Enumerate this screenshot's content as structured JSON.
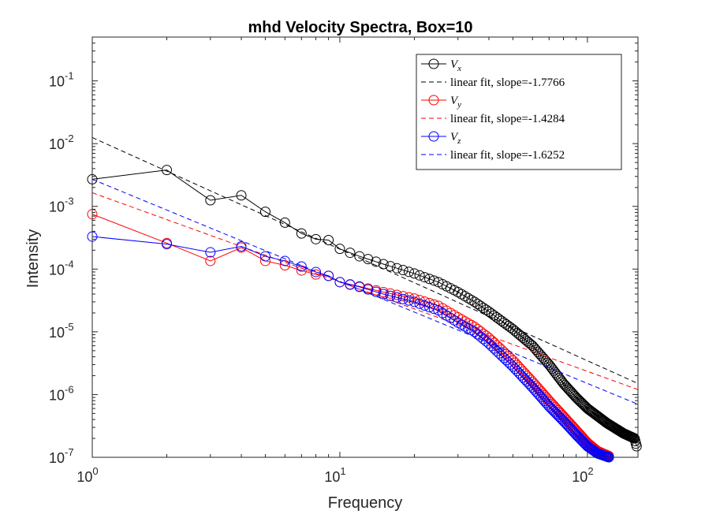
{
  "chart_data": {
    "type": "line",
    "title": "mhd Velocity Spectra, Box=10",
    "xlabel": "Frequency",
    "ylabel": "Intensity",
    "xscale": "log",
    "yscale": "log",
    "xlim": [
      1,
      160
    ],
    "ylim": [
      1e-07,
      0.5
    ],
    "grid": false,
    "legend_position": "top-right",
    "x_ticks": [
      {
        "value": 1,
        "base": "10",
        "exp": "0"
      },
      {
        "value": 10,
        "base": "10",
        "exp": "1"
      },
      {
        "value": 100,
        "base": "10",
        "exp": "2"
      }
    ],
    "y_ticks": [
      {
        "value": 1e-07,
        "base": "10",
        "exp": "-7"
      },
      {
        "value": 1e-06,
        "base": "10",
        "exp": "-6"
      },
      {
        "value": 1e-05,
        "base": "10",
        "exp": "-5"
      },
      {
        "value": 0.0001,
        "base": "10",
        "exp": "-4"
      },
      {
        "value": 0.001,
        "base": "10",
        "exp": "-3"
      },
      {
        "value": 0.01,
        "base": "10",
        "exp": "-2"
      },
      {
        "value": 0.1,
        "base": "10",
        "exp": "-1"
      }
    ],
    "legend": [
      {
        "kind": "data",
        "symbol": "V",
        "subscript": "x",
        "color": "#000000"
      },
      {
        "kind": "fit",
        "label": "linear fit, slope=-1.7766",
        "color": "#000000"
      },
      {
        "kind": "data",
        "symbol": "V",
        "subscript": "y",
        "color": "#ff0000"
      },
      {
        "kind": "fit",
        "label": "linear fit, slope=-1.4284",
        "color": "#ff0000"
      },
      {
        "kind": "data",
        "symbol": "V",
        "subscript": "z",
        "color": "#0000ff"
      },
      {
        "kind": "fit",
        "label": "linear fit, slope=-1.6252",
        "color": "#0000ff"
      }
    ],
    "series": [
      {
        "color": "#000000",
        "marker": "circle",
        "x_range": [
          1,
          158
        ],
        "anchors": [
          [
            1,
            0.0027
          ],
          [
            2,
            0.0038
          ],
          [
            3,
            0.00125
          ],
          [
            4,
            0.0015
          ],
          [
            5,
            0.00082
          ],
          [
            6,
            0.00055
          ],
          [
            7,
            0.00037
          ],
          [
            8,
            0.0003
          ],
          [
            9,
            0.00029
          ],
          [
            10,
            0.00021
          ],
          [
            12,
            0.00016
          ],
          [
            15,
            0.00012
          ],
          [
            20,
            8.5e-05
          ],
          [
            25,
            6.2e-05
          ],
          [
            30,
            4.3e-05
          ],
          [
            35,
            3e-05
          ],
          [
            40,
            2.1e-05
          ],
          [
            50,
            1.1e-05
          ],
          [
            60,
            6e-06
          ],
          [
            70,
            3e-06
          ],
          [
            80,
            1.5e-06
          ],
          [
            90,
            9e-07
          ],
          [
            100,
            6e-07
          ],
          [
            120,
            3.5e-07
          ],
          [
            140,
            2.4e-07
          ],
          [
            155,
            2e-07
          ],
          [
            158,
            1.5e-07
          ]
        ],
        "fit": {
          "x": [
            1,
            160
          ],
          "y": [
            0.0125,
            1.5e-06
          ]
        }
      },
      {
        "color": "#ff0000",
        "marker": "circle",
        "x_range": [
          1,
          122
        ],
        "anchors": [
          [
            1,
            0.00075
          ],
          [
            2,
            0.00026
          ],
          [
            3,
            0.000135
          ],
          [
            4,
            0.00022
          ],
          [
            5,
            0.000135
          ],
          [
            6,
            0.000115
          ],
          [
            7,
            9.5e-05
          ],
          [
            8,
            8.2e-05
          ],
          [
            9,
            7.8e-05
          ],
          [
            10,
            6.2e-05
          ],
          [
            12,
            5.3e-05
          ],
          [
            15,
            4.3e-05
          ],
          [
            20,
            3.4e-05
          ],
          [
            25,
            2.6e-05
          ],
          [
            30,
            1.7e-05
          ],
          [
            35,
            1.2e-05
          ],
          [
            40,
            8e-06
          ],
          [
            50,
            3.5e-06
          ],
          [
            60,
            1.6e-06
          ],
          [
            70,
            8e-07
          ],
          [
            80,
            4.5e-07
          ],
          [
            90,
            2.7e-07
          ],
          [
            100,
            1.7e-07
          ],
          [
            110,
            1.25e-07
          ],
          [
            122,
            1.05e-07
          ]
        ],
        "fit": {
          "x": [
            1,
            160
          ],
          "y": [
            0.00165,
            1.2e-06
          ]
        }
      },
      {
        "color": "#0000ff",
        "marker": "circle",
        "x_range": [
          1,
          122
        ],
        "anchors": [
          [
            1,
            0.00033
          ],
          [
            2,
            0.00025
          ],
          [
            3,
            0.000185
          ],
          [
            4,
            0.00023
          ],
          [
            5,
            0.00016
          ],
          [
            6,
            0.000135
          ],
          [
            7,
            0.00011
          ],
          [
            8,
            9e-05
          ],
          [
            9,
            7.8e-05
          ],
          [
            10,
            6.2e-05
          ],
          [
            12,
            5.2e-05
          ],
          [
            15,
            4e-05
          ],
          [
            20,
            3e-05
          ],
          [
            25,
            2.2e-05
          ],
          [
            30,
            1.4e-05
          ],
          [
            35,
            1e-05
          ],
          [
            40,
            6.5e-06
          ],
          [
            50,
            2.8e-06
          ],
          [
            60,
            1.3e-06
          ],
          [
            70,
            6.5e-07
          ],
          [
            80,
            3.8e-07
          ],
          [
            90,
            2.3e-07
          ],
          [
            100,
            1.5e-07
          ],
          [
            110,
            1.15e-07
          ],
          [
            122,
            1e-07
          ]
        ],
        "fit": {
          "x": [
            1,
            160
          ],
          "y": [
            0.0027,
            7e-07
          ]
        }
      }
    ]
  }
}
